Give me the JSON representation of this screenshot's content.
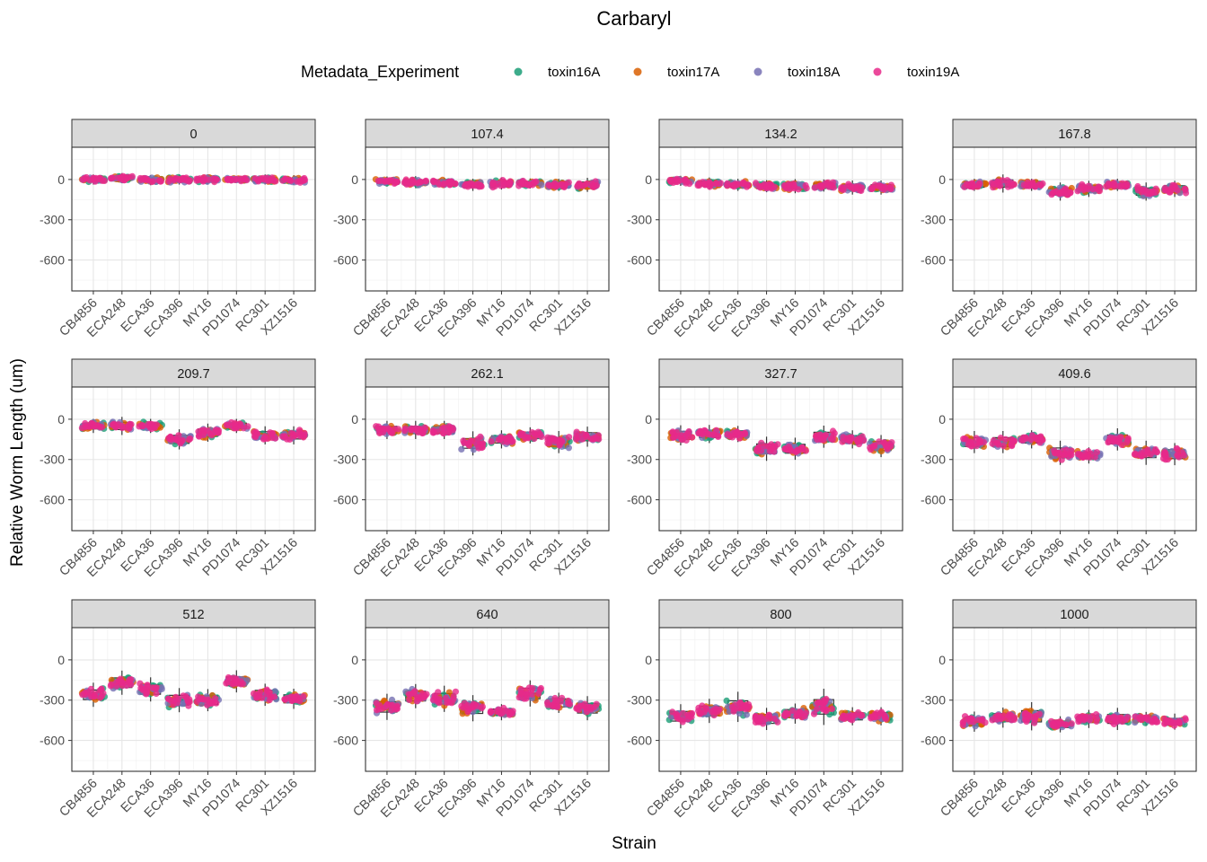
{
  "chart_data": {
    "type": "scatter",
    "title": "Carbaryl",
    "xlabel": "Strain",
    "ylabel": "Relative Worm Length (um)",
    "legend": {
      "title": "Metadata_Experiment",
      "position": "top",
      "entries": [
        "toxin16A",
        "toxin17A",
        "toxin18A",
        "toxin19A"
      ]
    },
    "series_colors": {
      "toxin16A": "#1b9e77",
      "toxin17A": "#d95f02",
      "toxin18A": "#7570b3",
      "toxin19A": "#e7298a"
    },
    "ylim": [
      -830,
      240
    ],
    "y_ticks": [
      0,
      -300,
      -600
    ],
    "y_tick_labels": [
      "0",
      "-300",
      "-600"
    ],
    "grid": true,
    "strains": [
      "CB4856",
      "ECA248",
      "ECA36",
      "ECA396",
      "MY16",
      "PD1074",
      "RC301",
      "XZ1516"
    ],
    "panels": [
      {
        "label": "0",
        "medians": [
          0,
          10,
          -5,
          0,
          0,
          0,
          0,
          -5
        ],
        "spread": [
          25,
          25,
          25,
          25,
          25,
          15,
          25,
          25
        ]
      },
      {
        "label": "107.4",
        "medians": [
          -15,
          -20,
          -25,
          -40,
          -30,
          -30,
          -40,
          -40
        ],
        "spread": [
          25,
          30,
          25,
          30,
          30,
          25,
          30,
          35
        ]
      },
      {
        "label": "134.2",
        "medians": [
          -10,
          -30,
          -40,
          -50,
          -50,
          -45,
          -60,
          -60
        ],
        "spread": [
          25,
          30,
          30,
          30,
          35,
          30,
          35,
          35
        ]
      },
      {
        "label": "167.8",
        "medians": [
          -40,
          -30,
          -40,
          -90,
          -70,
          -40,
          -90,
          -70
        ],
        "spread": [
          30,
          45,
          30,
          45,
          40,
          30,
          45,
          40
        ]
      },
      {
        "label": "209.7",
        "medians": [
          -50,
          -50,
          -50,
          -150,
          -100,
          -50,
          -120,
          -120
        ],
        "spread": [
          35,
          45,
          35,
          50,
          45,
          35,
          45,
          45
        ]
      },
      {
        "label": "262.1",
        "medians": [
          -80,
          -80,
          -80,
          -180,
          -150,
          -120,
          -170,
          -130
        ],
        "spread": [
          45,
          45,
          45,
          60,
          45,
          40,
          55,
          50
        ]
      },
      {
        "label": "327.7",
        "medians": [
          -120,
          -110,
          -110,
          -220,
          -220,
          -130,
          -150,
          -200
        ],
        "spread": [
          50,
          45,
          40,
          60,
          55,
          55,
          45,
          55
        ]
      },
      {
        "label": "409.6",
        "medians": [
          -170,
          -170,
          -150,
          -250,
          -270,
          -150,
          -250,
          -260
        ],
        "spread": [
          55,
          55,
          45,
          60,
          40,
          55,
          60,
          55
        ]
      },
      {
        "label": "512",
        "medians": [
          -260,
          -170,
          -220,
          -300,
          -300,
          -160,
          -260,
          -290
        ],
        "spread": [
          60,
          60,
          60,
          60,
          55,
          55,
          55,
          50
        ]
      },
      {
        "label": "640",
        "medians": [
          -350,
          -270,
          -290,
          -360,
          -390,
          -250,
          -320,
          -360
        ],
        "spread": [
          65,
          60,
          65,
          65,
          40,
          65,
          50,
          60
        ]
      },
      {
        "label": "800",
        "medians": [
          -420,
          -380,
          -350,
          -440,
          -400,
          -350,
          -420,
          -420
        ],
        "spread": [
          60,
          60,
          75,
          55,
          50,
          90,
          45,
          45
        ]
      },
      {
        "label": "1000",
        "medians": [
          -460,
          -430,
          -420,
          -480,
          -440,
          -440,
          -440,
          -460
        ],
        "spread": [
          50,
          50,
          70,
          40,
          45,
          55,
          35,
          40
        ]
      }
    ]
  }
}
